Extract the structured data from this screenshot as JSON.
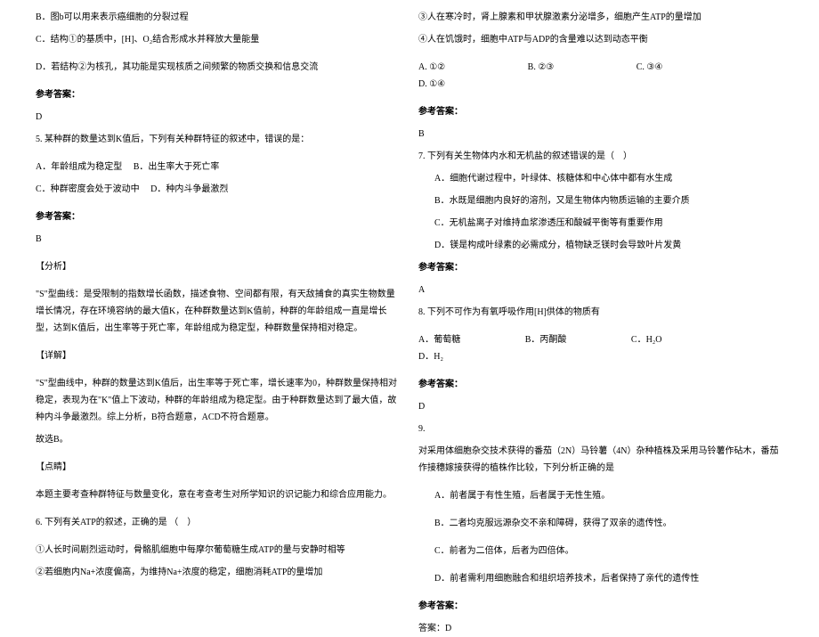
{
  "left": {
    "optB": "B．图b可以用来表示癌细胞的分裂过程",
    "optC": "C．结构①的基质中，[H]、O₂结合形成水并释放大量能量",
    "optD": "D．若结构②为核孔，其功能是实现核质之间频繁的物质交换和信息交流",
    "ref1": "参考答案：",
    "ansD": "D",
    "q5": "5. 某种群的数量达到K值后，下列有关种群特征的叙述中，错误的是：",
    "q5A": "A．年龄组成为稳定型",
    "q5B": "B．出生率大于死亡率",
    "q5C": "C．种群密度会处于波动中",
    "q5D": "D．种内斗争最激烈",
    "ref2": "参考答案：",
    "ansB": "B",
    "fx": "【分析】",
    "fxp1": "\"S\"型曲线：是受限制的指数增长函数，描述食物、空间都有限，有天敌捕食的真实生物数量增长情况，存在环境容纳的最大值K，在种群数量达到K值前，种群的年龄组成一直是增长型，达到K值后，出生率等于死亡率，年龄组成为稳定型，种群数量保持相对稳定。",
    "xj": "【详解】",
    "xjp1": "\"S\"型曲线中，种群的数量达到K值后，出生率等于死亡率，增长速率为0，种群数量保持相对稳定，表现为在\"K\"值上下波动，种群的年龄组成为稳定型。由于种群数量达到了最大值，故种内斗争最激烈。综上分析，B符合题意，ACD不符合题意。",
    "gxB": "故选B。",
    "dj": "【点睛】",
    "djp": "本题主要考查种群特征与数量变化，意在考查考生对所学知识的识记能力和综合应用能力。",
    "q6": "6. 下列有关ATP的叙述，正确的是              （　）",
    "q6_1": "①人长时间剧烈运动时，骨骼肌细胞中每摩尔葡萄糖生成ATP的量与安静时相等",
    "q6_2": "②若细胞内Na+浓度偏高，为维持Na+浓度的稳定，细胞消耗ATP的量增加"
  },
  "right": {
    "q6_3": "③人在寒冷时，肾上腺素和甲状腺激素分泌增多，细胞产生ATP的量增加",
    "q6_4": "④人在饥饿时，细胞中ATP与ADP的含量难以达到动态平衡",
    "q6A": "A. ①②",
    "q6B": "B. ②③",
    "q6C": "C. ③④",
    "q6D": "D. ①④",
    "ref3": "参考答案：",
    "ans6": "B",
    "q7": "7. 下列有关生物体内水和无机盐的叙述错误的是（　）",
    "q7A": "A．细胞代谢过程中，叶绿体、核糖体和中心体中都有水生成",
    "q7B": "B．水既是细胞内良好的溶剂，又是生物体内物质运输的主要介质",
    "q7C": "C．无机盐离子对维持血浆渗透压和酸碱平衡等有重要作用",
    "q7D": "D．镁是构成叶绿素的必需成分，植物缺乏镁时会导致叶片发黄",
    "ref4": "参考答案：",
    "ans7": "A",
    "q8": "8. 下列不可作为有氧呼吸作用[H]供体的物质有",
    "q8A": "A．葡萄糖",
    "q8B": "B．丙酮酸",
    "q8C": "C．H₂O",
    "q8D": "D．H₂",
    "ref5": "参考答案：",
    "ans8": "D",
    "q9num": "9.",
    "q9p": "对采用体细胞杂交技术获得的番茄（2N）马铃薯（4N）杂种植株及采用马铃薯作砧木，番茄作接穗嫁接获得的植株作比较，下列分析正确的是",
    "q9A": "A．前者属于有性生殖，后者属于无性生殖。",
    "q9B": "B．二者均克服远源杂交不亲和障碍，获得了双亲的遗传性。",
    "q9C": "C．前者为二倍体，后者为四倍体。",
    "q9D": "D．前者需利用细胞融合和组织培养技术，后者保持了亲代的遗传性",
    "ref6": "参考答案：",
    "ans9": "答案：D"
  }
}
